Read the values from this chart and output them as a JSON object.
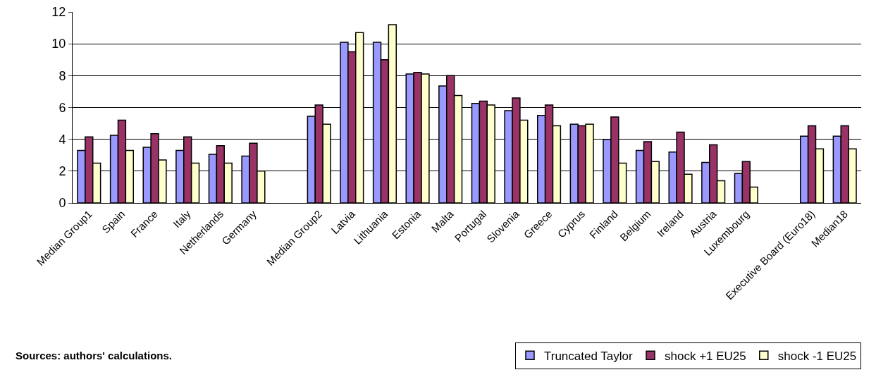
{
  "chart_data": {
    "type": "bar",
    "categories": [
      "Median Group1",
      "Spain",
      "France",
      "Italy",
      "Netherlands",
      "Germany",
      null,
      "Median Group2",
      "Latvia",
      "Lithuania",
      "Estonia",
      "Malta",
      "Portugal",
      "Slovenia",
      "Greece",
      "Cyprus",
      "Finland",
      "Belgium",
      "Ireland",
      "Austria",
      "Luxembourg",
      null,
      "Executive Board (Euro18)",
      "Median18"
    ],
    "series": [
      {
        "name": "Truncated Taylor",
        "color": "#9999ff",
        "values": [
          3.3,
          4.25,
          3.5,
          3.3,
          3.05,
          2.95,
          null,
          5.45,
          10.1,
          10.1,
          8.1,
          7.35,
          6.25,
          5.8,
          5.5,
          4.95,
          4.0,
          3.3,
          3.2,
          2.55,
          1.85,
          null,
          4.2,
          4.2
        ]
      },
      {
        "name": "shock +1 EU25",
        "color": "#993366",
        "values": [
          4.15,
          5.2,
          4.35,
          4.15,
          3.6,
          3.75,
          null,
          6.15,
          9.5,
          9.0,
          8.2,
          8.0,
          6.4,
          6.6,
          6.15,
          4.85,
          5.4,
          3.85,
          4.45,
          3.65,
          2.6,
          null,
          4.85,
          4.85
        ]
      },
      {
        "name": "shock -1 EU25",
        "color": "#ffffcc",
        "values": [
          2.5,
          3.3,
          2.7,
          2.5,
          2.5,
          2.0,
          null,
          4.95,
          10.7,
          11.2,
          8.1,
          6.75,
          6.15,
          5.2,
          4.85,
          4.95,
          2.5,
          2.6,
          1.8,
          1.4,
          1.0,
          null,
          3.4,
          3.4
        ]
      }
    ],
    "ylim": [
      0,
      12
    ],
    "yticks": [
      0,
      2,
      4,
      6,
      8,
      10,
      12
    ],
    "grid": "y",
    "legend": "bottom right",
    "annotations": [
      "Sources: authors' calculations."
    ]
  }
}
